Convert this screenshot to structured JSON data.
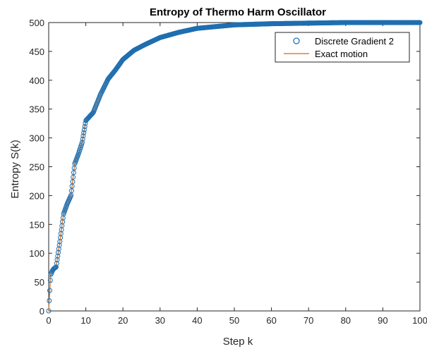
{
  "chart_data": {
    "type": "scatter",
    "title": "Entropy of Thermo Harm Oscillator",
    "xlabel": "Step k",
    "ylabel": "Entropy S(k)",
    "xlim": [
      0,
      100
    ],
    "ylim": [
      0,
      500
    ],
    "xticks": [
      0,
      10,
      20,
      30,
      40,
      50,
      60,
      70,
      80,
      90,
      100
    ],
    "yticks": [
      0,
      50,
      100,
      150,
      200,
      250,
      300,
      350,
      400,
      450,
      500
    ],
    "grid": false,
    "legend_position": "top-right",
    "colors": {
      "discrete": "#1f6fb0",
      "exact": "#d9823b",
      "axis": "#262626"
    },
    "series": [
      {
        "name": "Discrete Gradient 2",
        "style": "markers",
        "marker": "circle",
        "x": [
          0,
          0.5,
          1,
          1.5,
          2,
          3,
          4,
          5,
          6,
          7,
          8,
          9,
          10,
          12,
          14,
          16,
          18,
          20,
          23,
          26,
          30,
          35,
          40,
          50,
          60,
          70,
          80,
          90,
          100
        ],
        "y": [
          0,
          62,
          70,
          74,
          76,
          120,
          168,
          186,
          200,
          255,
          272,
          292,
          330,
          344,
          376,
          402,
          418,
          436,
          452,
          462,
          474,
          483,
          490,
          496,
          498,
          499,
          500,
          500,
          500
        ]
      },
      {
        "name": "Exact motion",
        "style": "line",
        "x": [
          0,
          0.5,
          1,
          1.5,
          2,
          3,
          4,
          5,
          6,
          7,
          8,
          9,
          10,
          12,
          14,
          16,
          18,
          20,
          23,
          26,
          30,
          35,
          40,
          50,
          60,
          70,
          80,
          90,
          100
        ],
        "y": [
          0,
          62,
          70,
          74,
          76,
          120,
          168,
          186,
          200,
          255,
          272,
          292,
          330,
          344,
          376,
          402,
          418,
          436,
          452,
          462,
          474,
          483,
          490,
          496,
          498,
          499,
          500,
          500,
          500
        ]
      }
    ]
  }
}
